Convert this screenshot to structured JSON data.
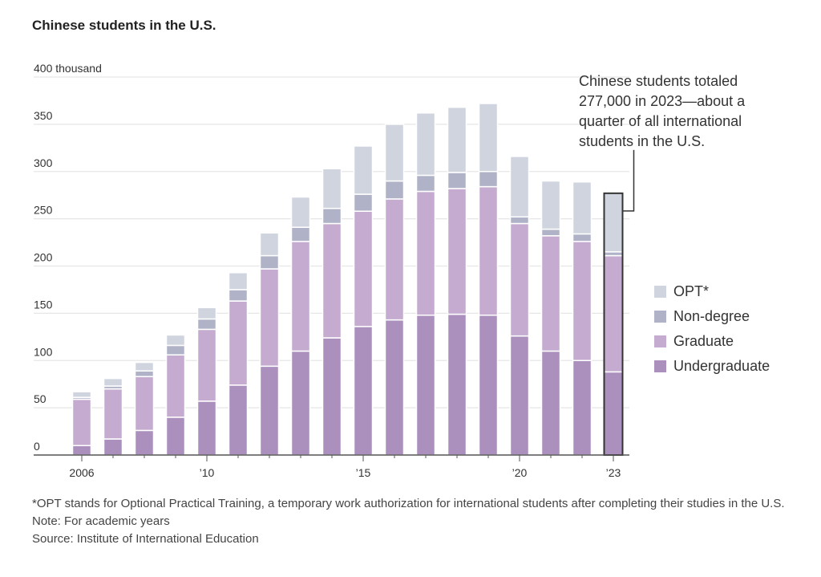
{
  "chart_data": {
    "type": "bar",
    "stacked": true,
    "title": "Chinese students in the U.S.",
    "xlabel": "",
    "ylabel": "",
    "y_unit_label": "400 thousand",
    "ylim": [
      0,
      400
    ],
    "yticks": [
      0,
      50,
      100,
      150,
      200,
      250,
      300,
      350,
      400
    ],
    "ytick_labels": [
      "0",
      "50",
      "100",
      "150",
      "200",
      "250",
      "300",
      "350",
      "400 thousand"
    ],
    "grid": true,
    "categories": [
      "2006",
      "2007",
      "2008",
      "2009",
      "2010",
      "2011",
      "2012",
      "2013",
      "2014",
      "2015",
      "2016",
      "2017",
      "2018",
      "2019",
      "2020",
      "2021",
      "2022",
      "2023"
    ],
    "xtick_labels": [
      {
        "index": 0,
        "label": "2006"
      },
      {
        "index": 4,
        "label": "’10"
      },
      {
        "index": 9,
        "label": "’15"
      },
      {
        "index": 14,
        "label": "’20"
      },
      {
        "index": 17,
        "label": "’23"
      }
    ],
    "series": [
      {
        "name": "Undergraduate",
        "color": "#ab8fbd",
        "values": [
          10,
          17,
          26,
          40,
          57,
          74,
          94,
          110,
          124,
          136,
          143,
          148,
          149,
          148,
          126,
          110,
          100,
          88
        ]
      },
      {
        "name": "Graduate",
        "color": "#c4abcf",
        "values": [
          49,
          53,
          57,
          66,
          76,
          89,
          103,
          116,
          121,
          122,
          128,
          131,
          133,
          136,
          119,
          122,
          126,
          123
        ]
      },
      {
        "name": "Non-degree",
        "color": "#b0b2c8",
        "values": [
          2,
          3,
          6,
          10,
          11,
          12,
          14,
          15,
          16,
          18,
          19,
          17,
          17,
          16,
          7,
          7,
          8,
          4
        ]
      },
      {
        "name": "OPT*",
        "color": "#cfd4df",
        "values": [
          6,
          8,
          9,
          11,
          12,
          18,
          24,
          32,
          42,
          51,
          60,
          66,
          69,
          72,
          64,
          51,
          55,
          62
        ]
      }
    ],
    "legend": {
      "placement": "right",
      "order": [
        "OPT*",
        "Non-degree",
        "Graduate",
        "Undergraduate"
      ]
    },
    "highlight": {
      "index": 17,
      "total": 277
    },
    "annotation": "Chinese students totaled 277,000 in 2023—about a quarter of all international students in the U.S."
  },
  "footnotes": {
    "opt": "*OPT stands for Optional Practical Training, a temporary work authorization for international students after completing their studies in the U.S.",
    "note": "Note: For academic years",
    "source": "Source: Institute of International Education"
  }
}
